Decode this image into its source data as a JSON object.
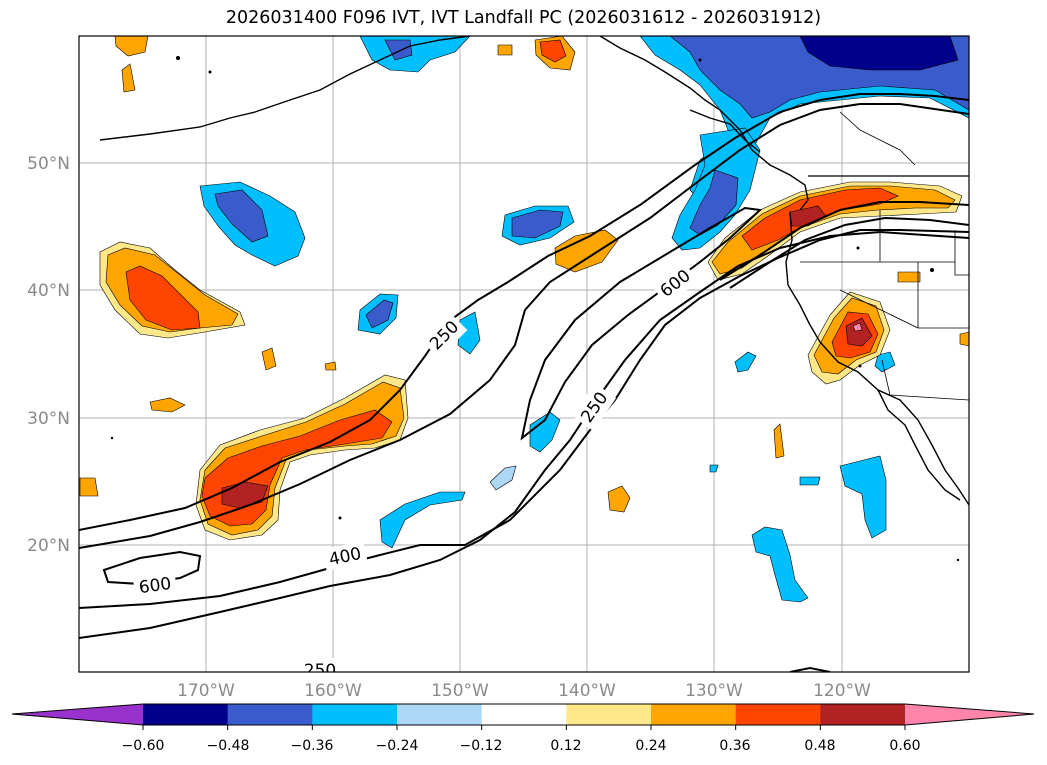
{
  "title": "2026031400 F096 IVT, IVT Landfall PC (2026031612 - 2026031912)",
  "lat_labels": [
    "50°N",
    "40°N",
    "30°N",
    "20°N"
  ],
  "lon_labels": [
    "170°W",
    "160°W",
    "150°W",
    "140°W",
    "130°W",
    "120°W"
  ],
  "contour_labels": [
    "250",
    "600",
    "250",
    "400",
    "600",
    "250"
  ],
  "colorbar": {
    "ticks": [
      "−0.60",
      "−0.48",
      "−0.36",
      "−0.24",
      "−0.12",
      "0.12",
      "0.24",
      "0.36",
      "0.48",
      "0.60"
    ],
    "colors": [
      "#9932cc",
      "#00008b",
      "#3a5bcc",
      "#00bfff",
      "#add8f5",
      "#ffffff",
      "#ffe88a",
      "#ffa500",
      "#ff4500",
      "#b22222",
      "#ff85aa"
    ]
  }
}
